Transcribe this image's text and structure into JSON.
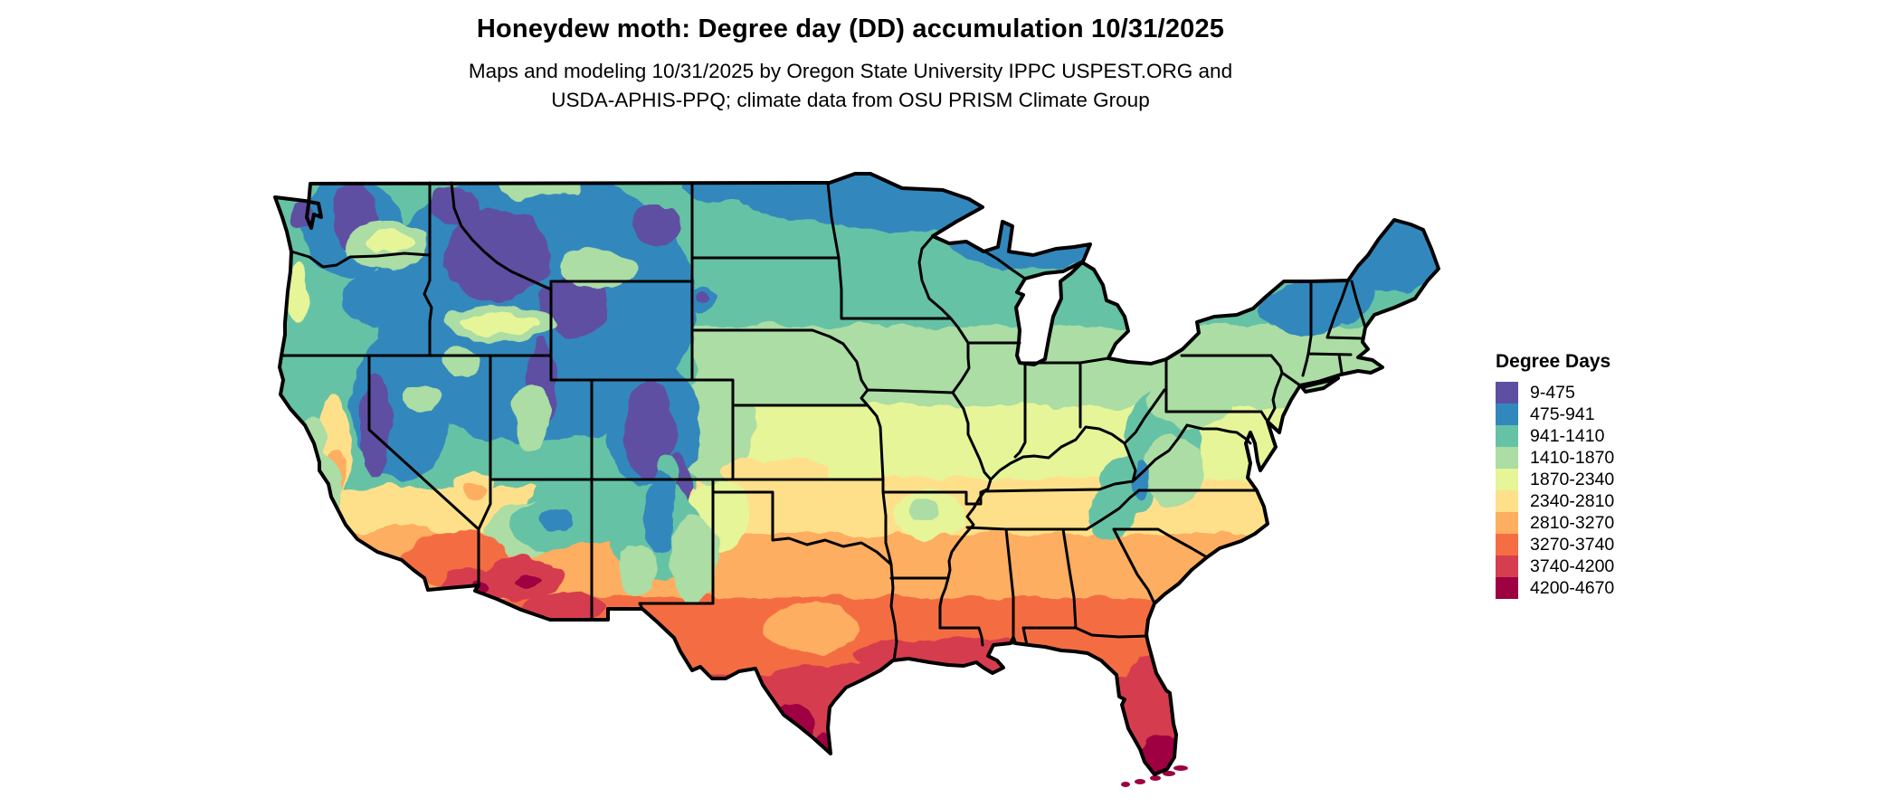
{
  "header": {
    "title": "Honeydew moth: Degree day (DD) accumulation 10/31/2025",
    "subtitle_line1": "Maps and modeling 10/31/2025 by Oregon State University IPPC USPEST.ORG and",
    "subtitle_line2": "USDA-APHIS-PPQ; climate data from OSU PRISM Climate Group"
  },
  "legend": {
    "title": "Degree Days"
  },
  "chart_data": {
    "type": "map-choropleth",
    "region": "Continental United States",
    "projection": "unprojected lat/lon raster map with state boundaries",
    "title": "Honeydew moth: Degree day (DD) accumulation 10/31/2025",
    "legend_title": "Degree Days",
    "unit": "accumulated degree days (DD)",
    "breaks": [
      9,
      475,
      941,
      1410,
      1870,
      2340,
      2810,
      3270,
      3740,
      4200,
      4670
    ],
    "classes": [
      {
        "range": "9-475",
        "color": "#5e4fa2"
      },
      {
        "range": "475-941",
        "color": "#3288bd"
      },
      {
        "range": "941-1410",
        "color": "#66c2a5"
      },
      {
        "range": "1410-1870",
        "color": "#abdda4"
      },
      {
        "range": "1870-2340",
        "color": "#e6f598"
      },
      {
        "range": "2340-2810",
        "color": "#fee08b"
      },
      {
        "range": "2810-3270",
        "color": "#fdae61"
      },
      {
        "range": "3270-3740",
        "color": "#f46d43"
      },
      {
        "range": "3740-4200",
        "color": "#d53e4f"
      },
      {
        "range": "4200-4670",
        "color": "#9e0142"
      }
    ],
    "pattern_notes": "Coolest (purple/blue) over Cascades, Sierra Nevada, Bitterroots, Yellowstone, Colorado Rockies, northern Minnesota and Maine; teal across the northern tier and Appalachians; green-to-yellow across the central plains; orange across the South; hottest (red/maroon) in southern Arizona, southern Texas and peninsular Florida.",
    "map_field": {
      "shape_format": "[type r|e, x|cx, y|cy, w|rx, h|ry, classIndex, optional 1 = unclipped Florida Keys islet]",
      "shapes": [
        [
          "r",
          -30,
          -30,
          1360,
          200,
          2
        ],
        [
          "r",
          -30,
          170,
          1360,
          88,
          3
        ],
        [
          "r",
          -30,
          258,
          1360,
          82,
          4
        ],
        [
          "r",
          -30,
          340,
          1360,
          60,
          5
        ],
        [
          "r",
          -30,
          400,
          1360,
          70,
          6
        ],
        [
          "r",
          -30,
          470,
          1360,
          85,
          7
        ],
        [
          "r",
          -30,
          555,
          1360,
          165,
          8
        ],
        [
          "r",
          -30,
          -30,
          500,
          380,
          2
        ],
        [
          "e",
          355,
          370,
          70,
          40,
          2
        ],
        [
          "e",
          280,
          395,
          40,
          30,
          3
        ],
        [
          "e",
          495,
          380,
          35,
          40,
          4
        ],
        [
          "e",
          492,
          285,
          45,
          60,
          3
        ],
        [
          "e",
          735,
          26,
          215,
          40,
          1
        ],
        [
          "e",
          838,
          70,
          88,
          38,
          1
        ],
        [
          "e",
          628,
          28,
          72,
          30,
          1
        ],
        [
          "e",
          520,
          18,
          62,
          16,
          1
        ],
        [
          "e",
          1247,
          76,
          62,
          56,
          1
        ],
        [
          "e",
          1143,
          152,
          48,
          30,
          1
        ],
        [
          "e",
          1184,
          134,
          40,
          32,
          1
        ],
        [
          "e",
          882,
          196,
          48,
          16,
          3
        ],
        [
          "e",
          728,
          378,
          40,
          26,
          4
        ],
        [
          "e",
          724,
          374,
          18,
          12,
          3
        ],
        [
          "e",
          295,
          148,
          178,
          152,
          1
        ],
        [
          "e",
          148,
          258,
          56,
          86,
          1
        ],
        [
          "e",
          92,
          62,
          56,
          56,
          1
        ],
        [
          "e",
          424,
          282,
          54,
          70,
          1
        ],
        [
          "e",
          478,
          140,
          17,
          13,
          1
        ],
        [
          "e",
          120,
          142,
          42,
          30,
          1
        ],
        [
          "e",
          96,
          50,
          26,
          36,
          0
        ],
        [
          "e",
          38,
          48,
          13,
          16,
          0
        ],
        [
          "e",
          252,
          92,
          58,
          52,
          0
        ],
        [
          "e",
          338,
          148,
          38,
          34,
          0
        ],
        [
          "e",
          302,
          234,
          17,
          48,
          0
        ],
        [
          "e",
          118,
          282,
          17,
          55,
          0
        ],
        [
          "e",
          422,
          288,
          28,
          56,
          0
        ],
        [
          "e",
          452,
          352,
          14,
          38,
          0
        ],
        [
          "e",
          428,
          58,
          26,
          22,
          0
        ],
        [
          "e",
          205,
          38,
          28,
          20,
          0
        ],
        [
          "e",
          480,
          137,
          7,
          6,
          0
        ],
        [
          "e",
          132,
          82,
          46,
          26,
          3
        ],
        [
          "e",
          135,
          78,
          28,
          13,
          4
        ],
        [
          "e",
          33,
          132,
          11,
          32,
          4
        ],
        [
          "e",
          255,
          168,
          62,
          20,
          3
        ],
        [
          "e",
          255,
          168,
          46,
          11,
          4
        ],
        [
          "e",
          290,
          272,
          20,
          38,
          3
        ],
        [
          "e",
          170,
          252,
          22,
          16,
          3
        ],
        [
          "e",
          215,
          210,
          20,
          14,
          3
        ],
        [
          "e",
          365,
          108,
          42,
          22,
          3
        ],
        [
          "e",
          300,
          16,
          42,
          14,
          3
        ],
        [
          "e",
          440,
          330,
          12,
          18,
          2
        ],
        [
          "e",
          225,
          345,
          22,
          15,
          5
        ],
        [
          "e",
          228,
          350,
          12,
          8,
          6
        ],
        [
          "e",
          72,
          302,
          18,
          58,
          5
        ],
        [
          "e",
          74,
          332,
          10,
          26,
          6
        ],
        [
          "e",
          55,
          352,
          26,
          42,
          3
        ],
        [
          "e",
          48,
          300,
          15,
          30,
          3
        ],
        [
          "e",
          150,
          420,
          55,
          30,
          6
        ],
        [
          "e",
          205,
          428,
          60,
          32,
          7
        ],
        [
          "e",
          228,
          458,
          38,
          17,
          8
        ],
        [
          "e",
          233,
          462,
          9,
          6,
          9
        ],
        [
          "e",
          312,
          390,
          48,
          26,
          2
        ],
        [
          "e",
          318,
          384,
          22,
          12,
          1
        ],
        [
          "e",
          282,
          448,
          42,
          24,
          8
        ],
        [
          "e",
          287,
          452,
          13,
          8,
          9
        ],
        [
          "e",
          325,
          482,
          48,
          16,
          8
        ],
        [
          "e",
          428,
          398,
          52,
          52,
          2
        ],
        [
          "e",
          432,
          378,
          16,
          45,
          1
        ],
        [
          "e",
          470,
          428,
          28,
          48,
          3
        ],
        [
          "e",
          408,
          440,
          22,
          30,
          3
        ],
        [
          "e",
          560,
          332,
          60,
          16,
          5
        ],
        [
          "e",
          600,
          505,
          50,
          28,
          6
        ],
        [
          "e",
          592,
          602,
          74,
          56,
          8
        ],
        [
          "e",
          578,
          622,
          26,
          36,
          9
        ],
        [
          "e",
          614,
          641,
          13,
          17,
          9
        ],
        [
          "e",
          658,
          566,
          52,
          26,
          8
        ],
        [
          "e",
          676,
          548,
          28,
          16,
          8
        ],
        [
          "e",
          748,
          532,
          100,
          17,
          8
        ],
        [
          "e",
          906,
          520,
          74,
          20,
          7
        ],
        [
          "e",
          976,
          596,
          36,
          64,
          8
        ],
        [
          "e",
          986,
          646,
          24,
          26,
          9
        ],
        [
          "e",
          988,
          298,
          42,
          58,
          2
        ],
        [
          "e",
          1020,
          254,
          48,
          28,
          3
        ],
        [
          "e",
          950,
          346,
          30,
          34,
          2
        ],
        [
          "e",
          930,
          380,
          26,
          28,
          2
        ],
        [
          "e",
          1000,
          330,
          34,
          40,
          3
        ],
        [
          "e",
          965,
          340,
          10,
          22,
          1
        ],
        [
          "e",
          1008,
          659,
          8,
          3,
          9,
          1
        ],
        [
          "e",
          995,
          665,
          7,
          3,
          9,
          1
        ],
        [
          "e",
          980,
          670,
          6,
          3,
          9,
          1
        ],
        [
          "e",
          963,
          674,
          6,
          3,
          9,
          1
        ],
        [
          "e",
          947,
          677,
          5,
          3,
          9,
          1
        ]
      ]
    }
  }
}
